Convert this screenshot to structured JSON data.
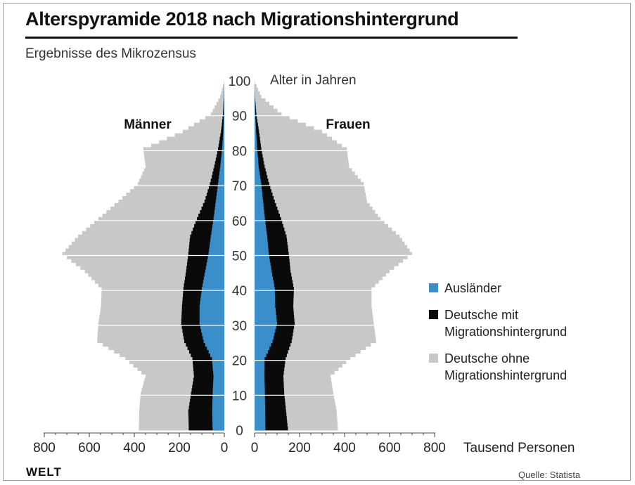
{
  "header": {
    "title": "Alterspyramide 2018 nach Migrationshintergrund",
    "subtitle": "Ergebnisse des Mikrozensus"
  },
  "footer": {
    "logo": "WELT",
    "source": "Quelle: Statista"
  },
  "colors": {
    "auslaender": "#3a8fcb",
    "mit_migration": "#0a0a0a",
    "ohne_migration": "#c8c8c8"
  },
  "chart_data": {
    "type": "population-pyramid",
    "title": "Alterspyramide 2018 nach Migrationshintergrund",
    "subtitle": "Ergebnisse des Mikrozensus",
    "age_axis_label": "Alter in Jahren",
    "value_axis_label": "Tausend Personen",
    "side_labels": {
      "left": "Männer",
      "right": "Frauen"
    },
    "age_ticks": [
      "100",
      "90",
      "80",
      "70",
      "60",
      "50",
      "40",
      "30",
      "20",
      "10",
      "0"
    ],
    "value_ticks_left": [
      "800",
      "600",
      "400",
      "200",
      "0"
    ],
    "value_ticks_right": [
      "0",
      "200",
      "400",
      "600",
      "800"
    ],
    "xlim": [
      0,
      800
    ],
    "ylim": [
      0,
      100
    ],
    "grid": true,
    "legend": [
      {
        "label": "Ausländer",
        "color": "#3a8fcb"
      },
      {
        "label": "Deutsche mit Migrationshintergrund",
        "color": "#0a0a0a"
      },
      {
        "label": "Deutsche ohne Migrationshintergrund",
        "color": "#c8c8c8"
      }
    ],
    "stack_order": [
      "Ausländer",
      "Deutsche mit Migrationshintergrund",
      "Deutsche ohne Migrationshintergrund"
    ],
    "ages": [
      0,
      5,
      10,
      15,
      20,
      25,
      30,
      35,
      40,
      45,
      50,
      55,
      60,
      65,
      70,
      75,
      80,
      85,
      90,
      95,
      99
    ],
    "series": [
      {
        "name": "Männer",
        "cumulative": {
          "Ausländer": [
            52,
            54,
            52,
            48,
            55,
            92,
            110,
            110,
            100,
            85,
            70,
            60,
            48,
            38,
            28,
            18,
            10,
            5,
            2,
            1,
            0
          ],
          "Deutsche mit Migrationshintergrund": [
            158,
            160,
            148,
            135,
            142,
            178,
            192,
            188,
            182,
            170,
            160,
            152,
            122,
            88,
            64,
            45,
            28,
            15,
            6,
            2,
            0
          ],
          "Deutsche ohne Migrationshintergrund": [
            380,
            378,
            372,
            350,
            440,
            565,
            560,
            548,
            545,
            620,
            720,
            650,
            560,
            470,
            385,
            350,
            360,
            185,
            60,
            18,
            2
          ]
        }
      },
      {
        "name": "Frauen",
        "cumulative": {
          "Ausländer": [
            48,
            47,
            46,
            44,
            45,
            80,
            100,
            92,
            90,
            76,
            63,
            56,
            46,
            38,
            30,
            18,
            12,
            7,
            3,
            1,
            0
          ],
          "Deutsche mit Migrationshintergrund": [
            148,
            140,
            132,
            128,
            138,
            165,
            178,
            172,
            175,
            160,
            152,
            142,
            118,
            90,
            65,
            45,
            30,
            20,
            8,
            2,
            0
          ],
          "Deutsche ohne Migrationshintergrund": [
            370,
            365,
            350,
            338,
            425,
            540,
            530,
            520,
            520,
            600,
            700,
            645,
            560,
            500,
            485,
            420,
            410,
            300,
            120,
            30,
            2
          ]
        }
      }
    ]
  }
}
